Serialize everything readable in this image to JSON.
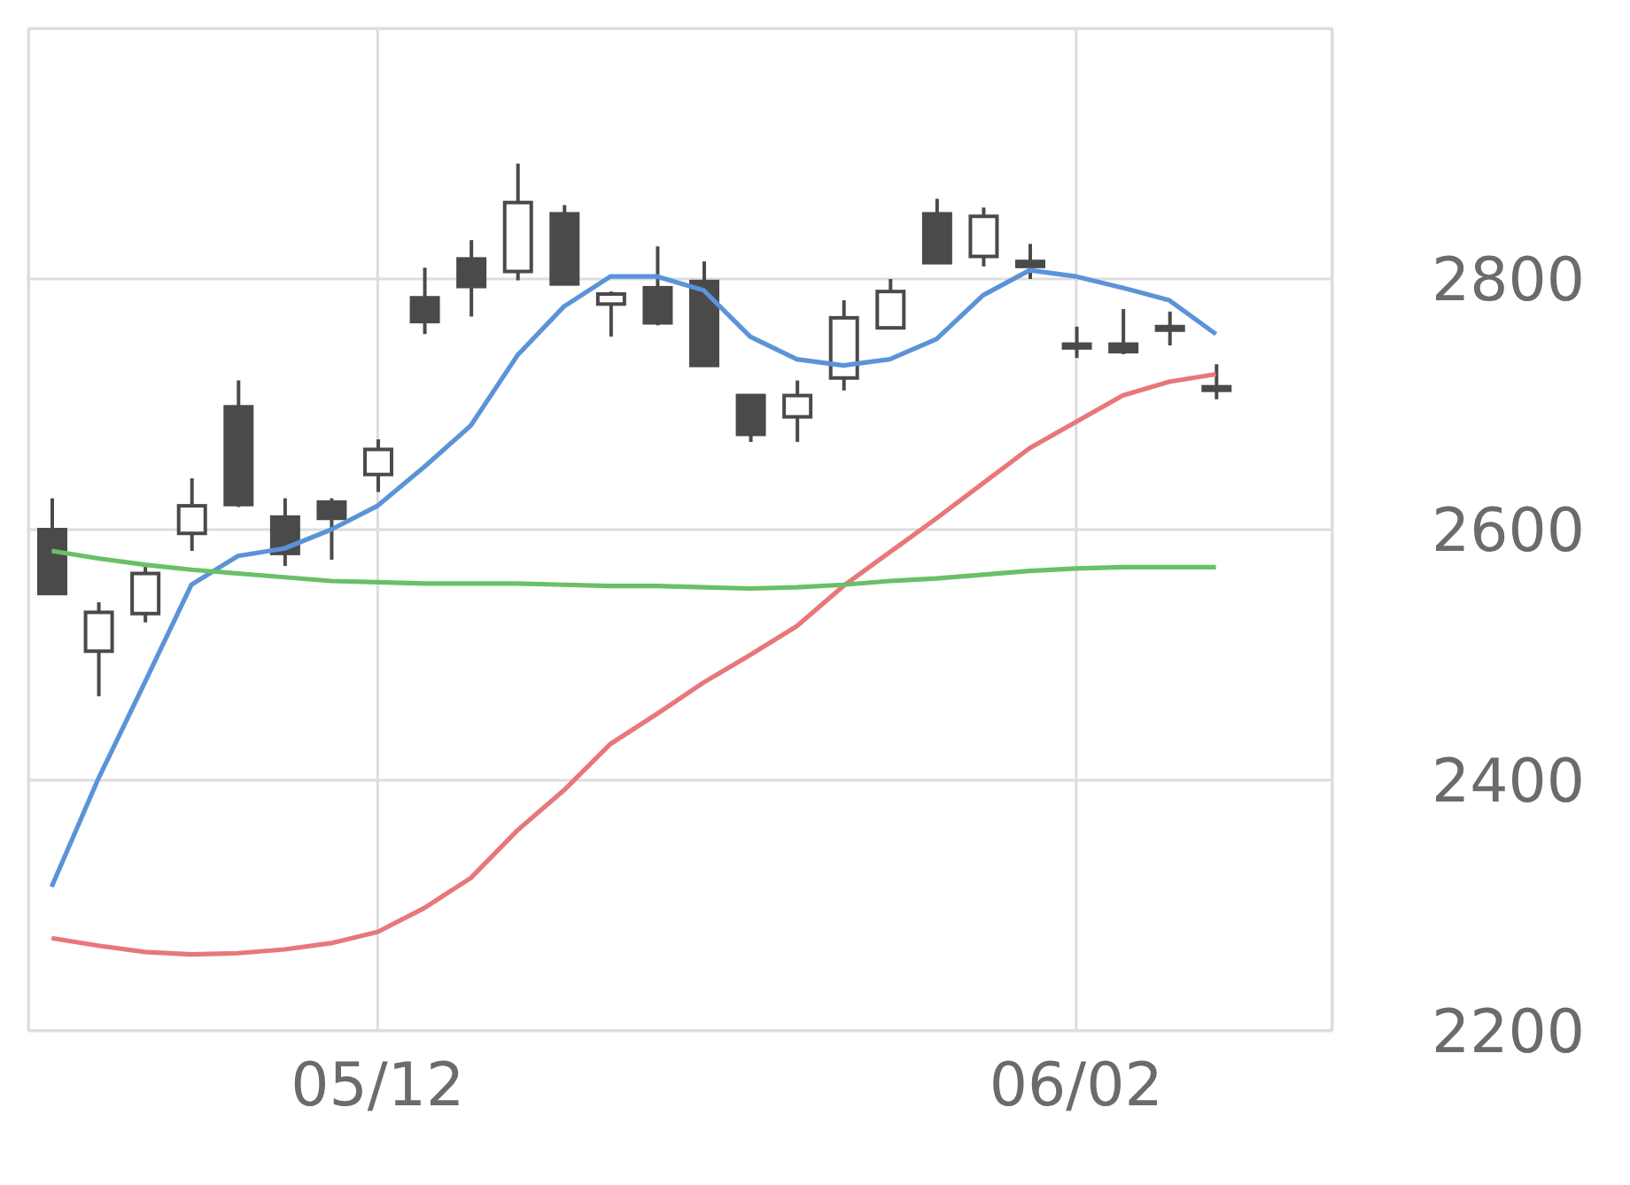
{
  "chart_data": {
    "type": "candlestick",
    "color": "#4a4a4a",
    "categories": [
      null,
      null,
      null,
      null,
      null,
      null,
      null,
      "05/12",
      null,
      null,
      null,
      null,
      null,
      null,
      null,
      null,
      null,
      null,
      null,
      null,
      null,
      null,
      "06/02",
      null,
      null,
      null,
      null,
      null
    ],
    "ohlc": [
      [
        2600,
        2625,
        2549,
        2549
      ],
      [
        2503,
        2542,
        2467,
        2534
      ],
      [
        2533,
        2572,
        2526,
        2565
      ],
      [
        2597,
        2641,
        2583,
        2619
      ],
      [
        2698,
        2719,
        2618,
        2620
      ],
      [
        2610,
        2625,
        2571,
        2581
      ],
      [
        2622,
        2625,
        2576,
        2609
      ],
      [
        2644,
        2672,
        2630,
        2664
      ],
      [
        2785,
        2809,
        2756,
        2766
      ],
      [
        2816,
        2831,
        2770,
        2794
      ],
      [
        2806,
        2892,
        2799,
        2861
      ],
      [
        2852,
        2859,
        2796,
        2796
      ],
      [
        2780,
        2790,
        2754,
        2788
      ],
      [
        2793,
        2826,
        2763,
        2765
      ],
      [
        2798,
        2814,
        2731,
        2731
      ],
      [
        2707,
        2707,
        2670,
        2676
      ],
      [
        2690,
        2719,
        2670,
        2707
      ],
      [
        2721,
        2783,
        2711,
        2769
      ],
      [
        2761,
        2800,
        2761,
        2790
      ],
      [
        2852,
        2864,
        2813,
        2813
      ],
      [
        2818,
        2857,
        2810,
        2850
      ],
      [
        2814,
        2828,
        2800,
        2810
      ],
      [
        2748,
        2762,
        2737,
        2745
      ],
      [
        2748,
        2776,
        2740,
        2742
      ],
      [
        2760,
        2774,
        2747,
        2762
      ],
      [
        2714,
        2732,
        2704,
        2712
      ],
      null,
      null
    ],
    "series": [
      {
        "type": "line",
        "color": "#5b93d8",
        "values": [
          2315,
          2401,
          2478,
          2556,
          2579,
          2585,
          2600,
          2619,
          2650,
          2683,
          2739,
          2778,
          2802,
          2802,
          2791,
          2754,
          2736,
          2731,
          2736,
          2752,
          2787,
          2807,
          2802,
          2793,
          2783,
          2756,
          null,
          null
        ]
      },
      {
        "type": "line",
        "color": "#e8777a",
        "values": [
          2274,
          2268,
          2263,
          2261,
          2262,
          2265,
          2270,
          2279,
          2298,
          2322,
          2360,
          2392,
          2429,
          2453,
          2478,
          2500,
          2523,
          2555,
          2582,
          2609,
          2637,
          2665,
          2686,
          2707,
          2718,
          2724,
          null,
          null
        ]
      },
      {
        "type": "line",
        "color": "#6abf69",
        "values": [
          2583,
          2577,
          2572,
          2568,
          2565,
          2562,
          2559,
          2558,
          2557,
          2557,
          2557,
          2556,
          2555,
          2555,
          2554,
          2553,
          2554,
          2556,
          2559,
          2561,
          2564,
          2567,
          2569,
          2570,
          2570,
          2570,
          null,
          null
        ]
      }
    ],
    "ylim": [
      2200,
      3000
    ],
    "yticks": [
      2200,
      2400,
      2600,
      2800
    ],
    "grid": true
  }
}
